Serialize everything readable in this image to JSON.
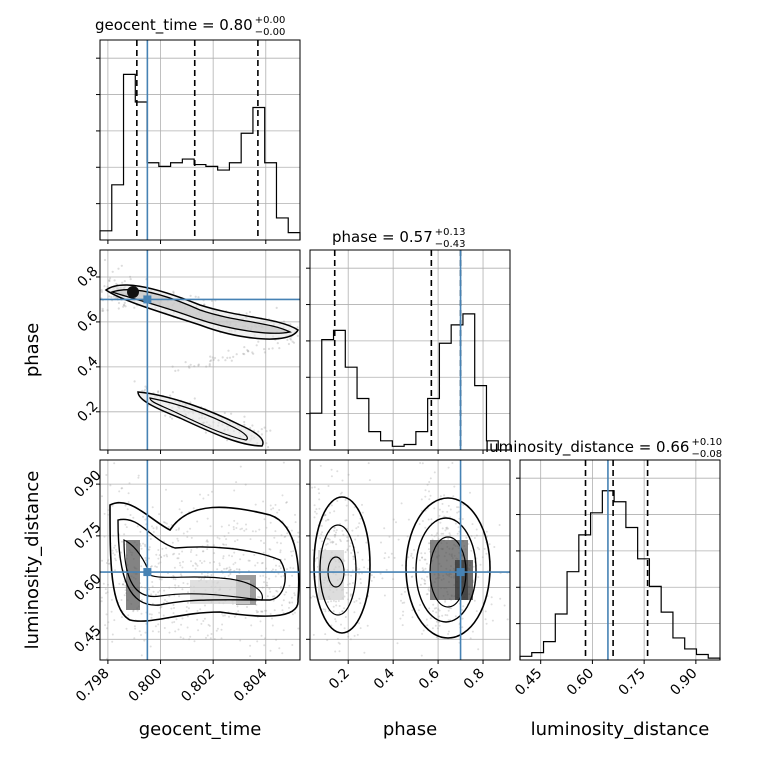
{
  "chart_data": {
    "type": "corner",
    "truth_color": "#4682b4",
    "parameters": [
      "geocent_time",
      "phase",
      "luminosity_distance"
    ],
    "truths": {
      "geocent_time": 0.7995,
      "phase": 0.7,
      "luminosity_distance": 0.645
    },
    "titles": [
      {
        "name": "geocent_time",
        "value": "0.80",
        "plus": "+0.00",
        "minus": "−0.00"
      },
      {
        "name": "phase",
        "value": "0.57",
        "plus": "+0.13",
        "minus": "−0.43"
      },
      {
        "name": "luminosity_distance",
        "value": "0.66",
        "plus": "+0.10",
        "minus": "−0.08"
      }
    ],
    "axis_labels": {
      "geocent_time": "geocent_time",
      "phase": "phase",
      "luminosity_distance": "luminosity_distance"
    },
    "ranges": {
      "geocent_time": [
        0.7977,
        0.8053
      ],
      "phase": [
        0.03,
        0.92
      ],
      "luminosity_distance": [
        0.39,
        0.97
      ]
    },
    "ticks": {
      "geocent_time": [
        "0.798",
        "0.800",
        "0.802",
        "0.804"
      ],
      "phase": [
        "0.2",
        "0.4",
        "0.6",
        "0.8"
      ],
      "luminosity_distance": [
        "0.45",
        "0.60",
        "0.75",
        "0.90"
      ]
    },
    "quantiles": {
      "geocent_time": [
        0.7991,
        0.8013,
        0.8037
      ],
      "phase": [
        0.14,
        0.57,
        0.7
      ],
      "luminosity_distance": [
        0.58,
        0.66,
        0.76
      ]
    },
    "histograms": {
      "geocent_time": [
        0.05,
        0.3,
        0.9,
        0.75,
        0.42,
        0.4,
        0.42,
        0.44,
        0.41,
        0.4,
        0.38,
        0.42,
        0.58,
        0.72,
        0.42,
        0.12,
        0.04
      ],
      "phase": [
        0.2,
        0.6,
        0.65,
        0.45,
        0.28,
        0.1,
        0.05,
        0.02,
        0.03,
        0.1,
        0.28,
        0.58,
        0.68,
        0.74,
        0.35,
        0.05,
        0.0
      ],
      "luminosity_distance": [
        0.02,
        0.04,
        0.1,
        0.25,
        0.48,
        0.68,
        0.8,
        0.92,
        0.86,
        0.72,
        0.55,
        0.4,
        0.26,
        0.12,
        0.06,
        0.03,
        0.01
      ]
    }
  }
}
